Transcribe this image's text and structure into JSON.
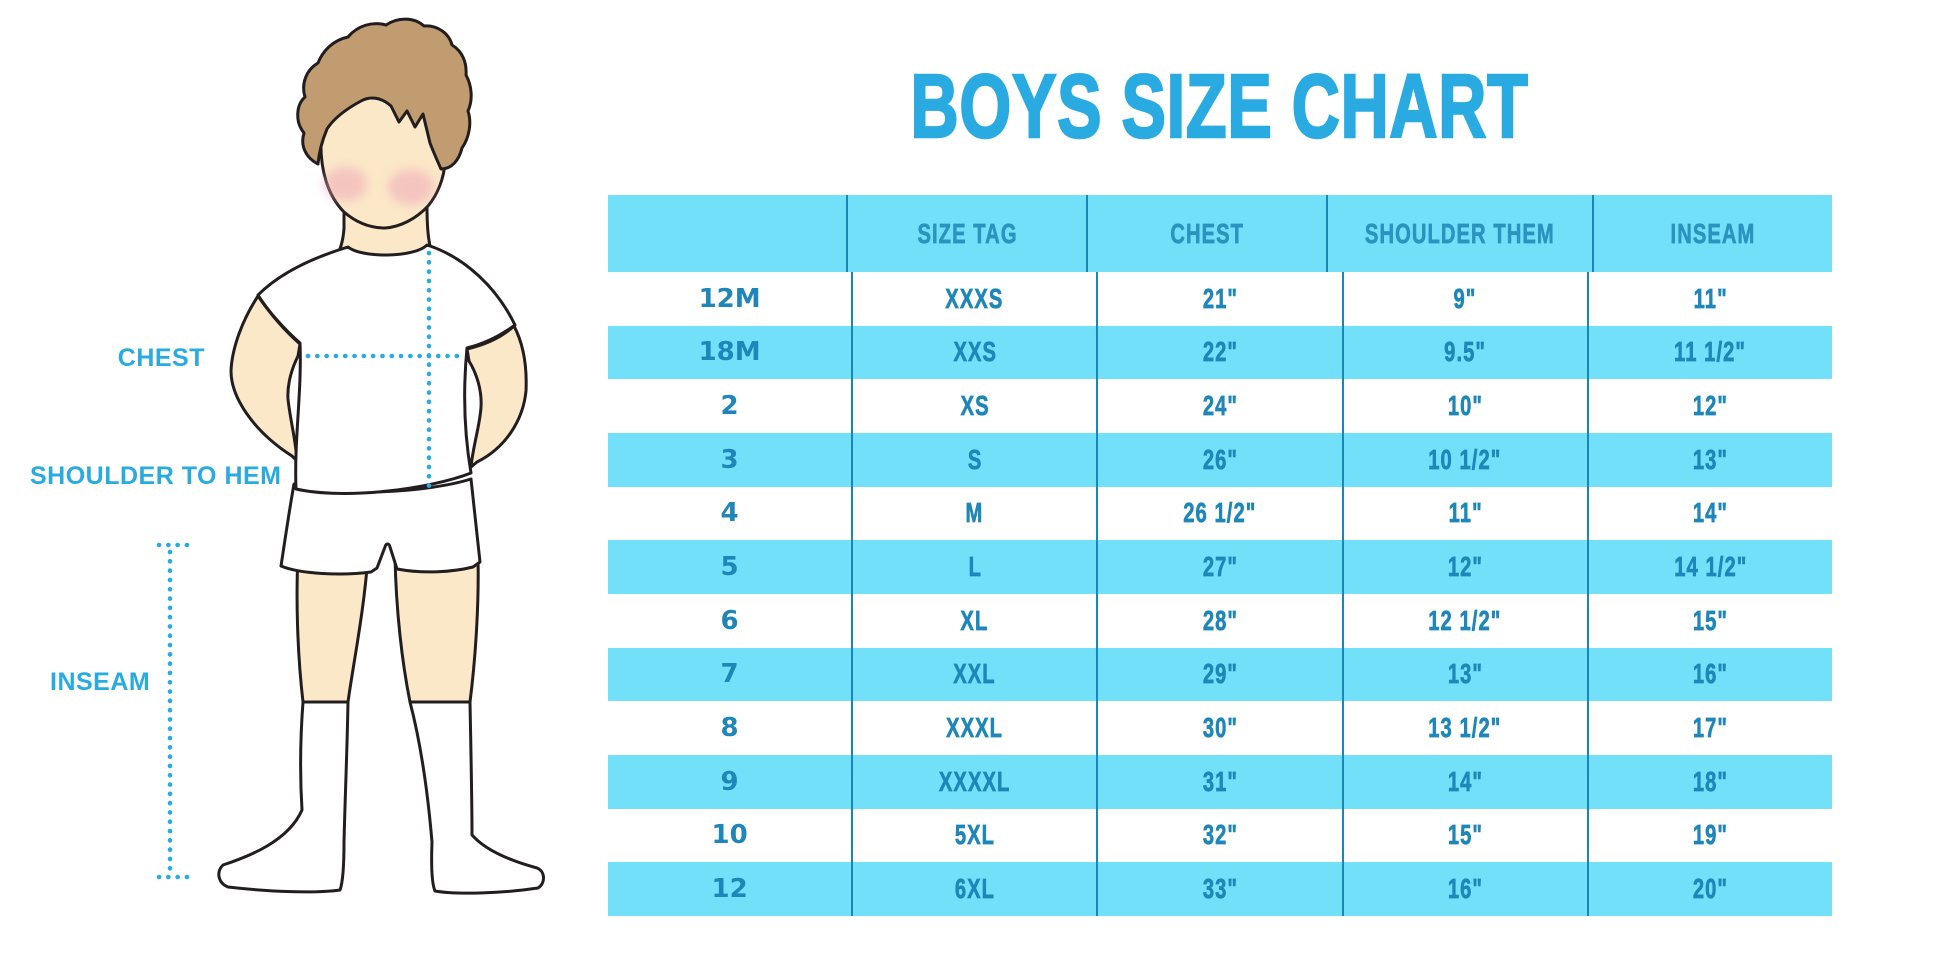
{
  "title": "BOYS SIZE CHART",
  "figure_labels": {
    "chest": "CHEST",
    "shoulder_to_hem": "SHOULDER TO HEM",
    "inseam": "INSEAM"
  },
  "colors": {
    "accent_cyan": "#29ABE2",
    "row_cyan": "#73E0FA",
    "header_text": "#2B93C0",
    "data_text": "#1E86B8",
    "divider": "#1987B9",
    "hair": "#C19C70",
    "skin": "#FBE8C8",
    "blush": "#EFA3B8",
    "outline": "#221E1F"
  },
  "chart_data": {
    "type": "table",
    "columns": [
      "",
      "SIZE TAG",
      "CHEST",
      "SHOULDER THEM",
      "INSEAM"
    ],
    "rows": [
      [
        "12M",
        "XXXS",
        "21\"",
        "9\"",
        "11\""
      ],
      [
        "18M",
        "XXS",
        "22\"",
        "9.5\"",
        "11 1/2\""
      ],
      [
        "2",
        "XS",
        "24\"",
        "10\"",
        "12\""
      ],
      [
        "3",
        "S",
        "26\"",
        "10 1/2\"",
        "13\""
      ],
      [
        "4",
        "M",
        "26 1/2\"",
        "11\"",
        "14\""
      ],
      [
        "5",
        "L",
        "27\"",
        "12\"",
        "14 1/2\""
      ],
      [
        "6",
        "XL",
        "28\"",
        "12 1/2\"",
        "15\""
      ],
      [
        "7",
        "XXL",
        "29\"",
        "13\"",
        "16\""
      ],
      [
        "8",
        "XXXL",
        "30\"",
        "13 1/2\"",
        "17\""
      ],
      [
        "9",
        "XXXXL",
        "31\"",
        "14\"",
        "18\""
      ],
      [
        "10",
        "5XL",
        "32\"",
        "15\"",
        "19\""
      ],
      [
        "12",
        "6XL",
        "33\"",
        "16\"",
        "20\""
      ]
    ]
  }
}
